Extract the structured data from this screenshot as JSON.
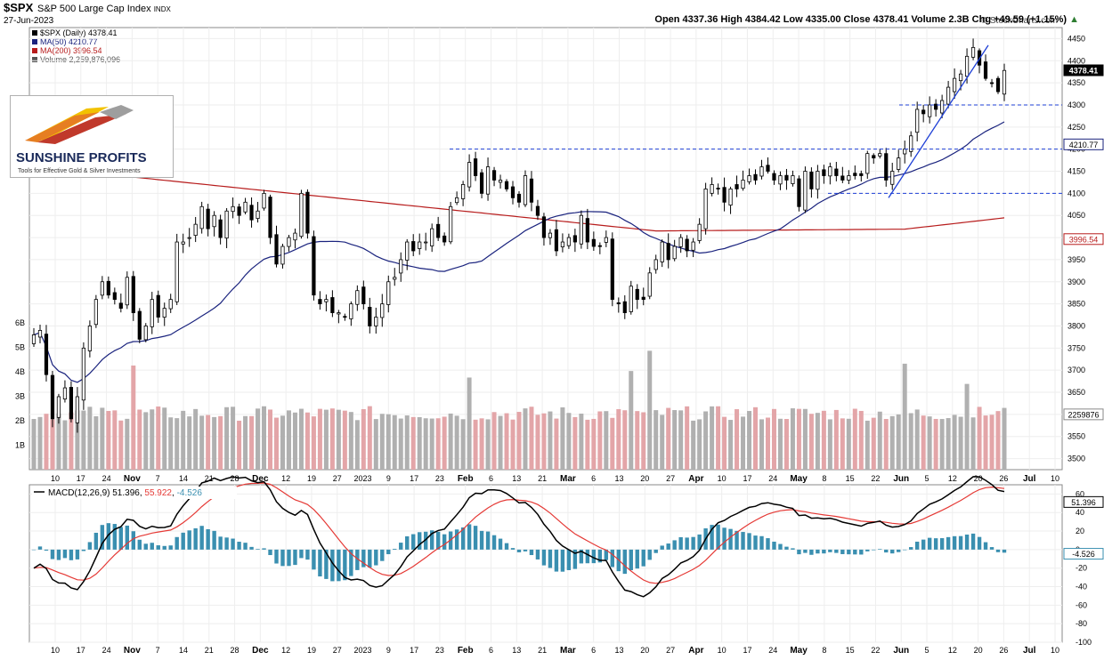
{
  "header": {
    "symbol": "$SPX",
    "name": "S&P 500 Large Cap Index",
    "exchange": "INDX",
    "date": "27-Jun-2023",
    "source": "© StockCharts.com",
    "ohlc": "Open 4337.36  High 4384.42  Low 4335.00  Close 4378.41  Volume 2.3B  Chg +49.59 (+1.15%)",
    "change_arrow": "▲"
  },
  "legend": [
    {
      "label": "$SPX (Daily) 4378.41",
      "color": "#000000"
    },
    {
      "label": "MA(50) 4210.77",
      "color": "#1a237e"
    },
    {
      "label": "MA(200) 3996.54",
      "color": "#b71c1c"
    },
    {
      "label": "Volume 2,259,876,096",
      "color": "#555555"
    }
  ],
  "logo": {
    "title": "SUNSHINE PROFITS",
    "tagline": "Tools for Effective Gold & Silver Investments"
  },
  "macd_legend": {
    "name": "MACD(12,26,9)",
    "macd": "51.396",
    "signal": "55.922",
    "hist": "-4.526",
    "macd_color": "#000000",
    "signal_color": "#e53935",
    "hist_color": "#3a8fb0"
  },
  "chart_data": {
    "type": "candlestick",
    "title": "$SPX S&P 500 Large Cap Index",
    "ylim": [
      3475,
      4475
    ],
    "y_ticks": [
      3500,
      3550,
      3600,
      3650,
      3700,
      3750,
      3800,
      3850,
      3900,
      3950,
      4000,
      4050,
      4100,
      4150,
      4200,
      4250,
      4300,
      4350,
      4400,
      4450
    ],
    "volume_ticks": [
      "1B",
      "2B",
      "3B",
      "4B",
      "5B",
      "6B"
    ],
    "x_tick_labels": [
      "10",
      "17",
      "24",
      "Nov",
      "7",
      "14",
      "21",
      "28",
      "Dec",
      "12",
      "19",
      "27",
      "2023",
      "9",
      "17",
      "23",
      "Feb",
      "6",
      "13",
      "21",
      "Mar",
      "6",
      "13",
      "20",
      "27",
      "Apr",
      "10",
      "17",
      "24",
      "May",
      "8",
      "15",
      "22",
      "Jun",
      "5",
      "12",
      "20",
      "26",
      "Jul",
      "10"
    ],
    "price_tags": [
      {
        "label": "4378.41",
        "value": 4378.41,
        "style": "black"
      },
      {
        "label": "4210.77",
        "value": 4210.77,
        "style": "blue"
      },
      {
        "label": "3996.54",
        "value": 3996.54,
        "style": "red"
      },
      {
        "label": "2259876",
        "value": 2259876,
        "style": "gray"
      }
    ],
    "support_lines": [
      4300,
      4200,
      4100
    ],
    "series": [
      {
        "name": "$SPX",
        "kind": "candles",
        "close": [
          3780,
          3790,
          3690,
          3590,
          3640,
          3660,
          3590,
          3640,
          3750,
          3800,
          3860,
          3900,
          3870,
          3860,
          3840,
          3910,
          3830,
          3770,
          3800,
          3860,
          3820,
          3840,
          3860,
          3990,
          3990,
          4000,
          4030,
          4070,
          4020,
          4050,
          4000,
          4060,
          4070,
          4050,
          4080,
          4040,
          4060,
          4100,
          4000,
          3940,
          3980,
          4000,
          4010,
          4100,
          4010,
          3870,
          3850,
          3860,
          3830,
          3830,
          3820,
          3850,
          3880,
          3850,
          3800,
          3820,
          3850,
          3900,
          3910,
          3950,
          3990,
          3970,
          3990,
          3990,
          4020,
          4000,
          3990,
          4070,
          4090,
          4120,
          4170,
          4140,
          4100,
          4160,
          4130,
          4130,
          4110,
          4090,
          4080,
          4140,
          4080,
          4050,
          4000,
          4010,
          3970,
          3990,
          4000,
          3990,
          4050,
          3990,
          3980,
          3980,
          4000,
          3860,
          3850,
          3830,
          3890,
          3860,
          3860,
          3920,
          3950,
          3990,
          3950,
          3980,
          4000,
          3970,
          3990,
          4030,
          4110,
          4120,
          4110,
          4080,
          4110,
          4110,
          4130,
          4140,
          4130,
          4160,
          4150,
          4130,
          4140,
          4130,
          4140,
          4070,
          4150,
          4110,
          4150,
          4140,
          4160,
          4140,
          4130,
          4140,
          4140,
          4140,
          4190,
          4180,
          4190,
          4130,
          4150,
          4180,
          4200,
          4230,
          4290,
          4280,
          4300,
          4290,
          4310,
          4340,
          4360,
          4370,
          4410,
          4430,
          4390,
          4360,
          4350,
          4330,
          4378
        ],
        "highlights": "one candle per trading session, Oct 2022 – Jun 27 2023"
      },
      {
        "name": "MA(50)",
        "kind": "line",
        "color": "#1a237e"
      },
      {
        "name": "MA(200)",
        "kind": "line",
        "color": "#b71c1c"
      },
      {
        "name": "Volume",
        "kind": "bars"
      }
    ],
    "macd_panel": {
      "ylim": [
        -100,
        70
      ],
      "y_ticks": [
        -100,
        -80,
        -60,
        -40,
        -20,
        0,
        20,
        40,
        60
      ],
      "macd_tag": "51.396",
      "hist_tag": "-4.526"
    }
  }
}
